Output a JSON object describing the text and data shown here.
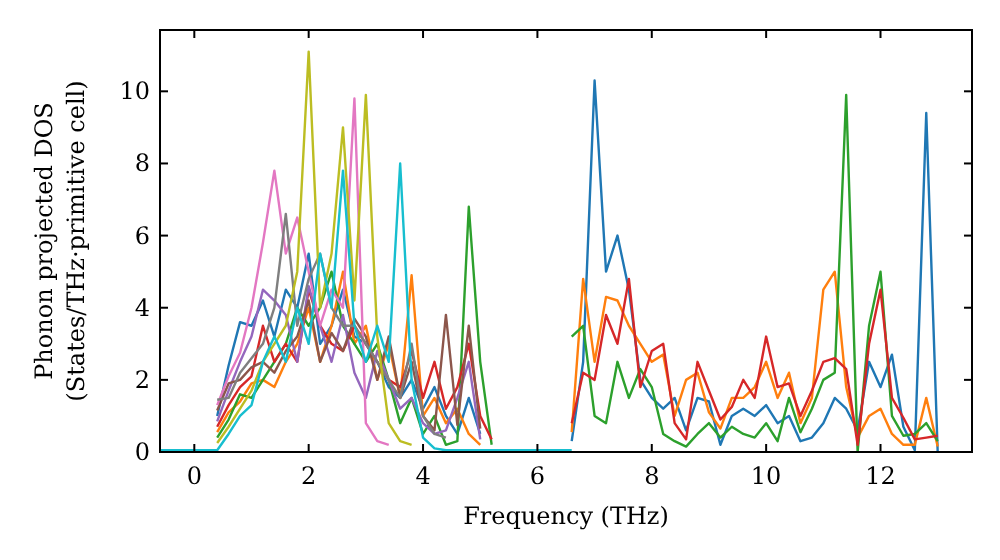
{
  "chart_data": {
    "type": "line",
    "xlabel": "Frequency (THz)",
    "ylabel": "Phonon projected DOS\n(States/THz·primitive cell)",
    "xlim": [
      -0.6,
      13.6
    ],
    "ylim": [
      0,
      11.7
    ],
    "xticks": [
      0,
      2,
      4,
      6,
      8,
      10,
      12
    ],
    "yticks": [
      0,
      2,
      4,
      6,
      8,
      10
    ],
    "grid": false,
    "marker": "none",
    "line_style": "solid",
    "x": [
      -0.6,
      0.2,
      0.4,
      0.6,
      0.8,
      1.0,
      1.2,
      1.4,
      1.6,
      1.8,
      2.0,
      2.2,
      2.4,
      2.6,
      2.8,
      3.0,
      3.2,
      3.4,
      3.6,
      3.8,
      4.0,
      4.2,
      4.4,
      4.6,
      4.8,
      5.0,
      5.2,
      6.4,
      6.6,
      6.8,
      7.0,
      7.2,
      7.4,
      7.6,
      7.8,
      8.0,
      8.2,
      8.4,
      8.6,
      8.8,
      9.0,
      9.2,
      9.4,
      9.6,
      9.8,
      10.0,
      10.2,
      10.4,
      10.6,
      10.8,
      11.0,
      11.2,
      11.4,
      11.6,
      11.8,
      12.0,
      12.2,
      12.4,
      12.6,
      12.8,
      13.0
    ],
    "series": [
      {
        "color": "#1f77b4",
        "values": [
          null,
          null,
          1.0,
          2.4,
          3.6,
          3.5,
          4.2,
          3.2,
          4.5,
          4.0,
          5.5,
          3.0,
          3.5,
          4.5,
          3.2,
          3.0,
          2.5,
          1.8,
          1.5,
          2.0,
          1.2,
          1.8,
          1.0,
          0.5,
          1.5,
          0.5,
          null,
          null,
          0.3,
          2.5,
          10.3,
          5.0,
          6.0,
          4.5,
          2.0,
          1.5,
          1.2,
          1.5,
          0.6,
          1.5,
          1.4,
          0.2,
          1.0,
          1.2,
          1.0,
          1.3,
          0.8,
          1.0,
          0.3,
          0.4,
          0.8,
          1.5,
          1.2,
          0.6,
          2.5,
          1.8,
          2.7,
          0.7,
          0.05,
          9.4,
          0
        ]
      },
      {
        "color": "#ff7f0e",
        "values": [
          null,
          null,
          0.55,
          1.1,
          1.4,
          1.9,
          2.0,
          1.8,
          2.5,
          3.0,
          4.0,
          2.5,
          3.5,
          5.0,
          3.0,
          3.5,
          2.0,
          3.0,
          1.5,
          4.9,
          1.0,
          1.5,
          0.8,
          1.2,
          0.5,
          0.2,
          null,
          null,
          0.55,
          4.8,
          2.5,
          4.3,
          4.2,
          3.5,
          3.0,
          2.5,
          2.7,
          1.0,
          2.0,
          2.2,
          1.1,
          0.65,
          1.5,
          1.5,
          1.8,
          2.5,
          1.5,
          2.2,
          0.8,
          1.5,
          4.5,
          5.0,
          1.8,
          0.4,
          1.0,
          1.2,
          0.5,
          0.2,
          0.2,
          1.5,
          0.15
        ]
      },
      {
        "color": "#2ca02c",
        "values": [
          null,
          null,
          0.4,
          0.9,
          1.6,
          1.5,
          2.0,
          2.5,
          3.0,
          4.0,
          3.5,
          4.0,
          5.0,
          3.5,
          3.0,
          2.5,
          3.0,
          2.0,
          0.8,
          1.5,
          0.5,
          1.0,
          0.2,
          0.3,
          6.8,
          2.5,
          0.2,
          null,
          3.2,
          3.5,
          1.0,
          0.8,
          2.5,
          1.5,
          2.3,
          1.8,
          0.5,
          0.3,
          0.15,
          0.5,
          0.8,
          0.4,
          0.7,
          0.5,
          0.4,
          0.8,
          0.3,
          1.5,
          0.55,
          1.2,
          2.0,
          2.2,
          9.9,
          0,
          3.5,
          5.0,
          1.0,
          0.45,
          0.5,
          0.8,
          0.3
        ]
      },
      {
        "color": "#d62728",
        "values": [
          null,
          null,
          0.7,
          1.3,
          1.8,
          2.1,
          3.5,
          2.5,
          3.0,
          2.5,
          4.5,
          3.5,
          3.0,
          2.8,
          3.5,
          3.0,
          2.5,
          2.0,
          1.8,
          2.8,
          1.5,
          2.5,
          1.2,
          1.8,
          3.0,
          1.0,
          0.35,
          null,
          0.8,
          2.2,
          2.0,
          3.8,
          3.0,
          4.8,
          1.8,
          2.8,
          3.0,
          0.8,
          0.35,
          2.5,
          1.7,
          0.9,
          1.25,
          2.0,
          1.5,
          3.2,
          1.8,
          1.9,
          1.0,
          1.7,
          2.5,
          2.6,
          2.3,
          0.2,
          3.0,
          4.5,
          1.5,
          0.95,
          0.35,
          0.4,
          0.45
        ]
      },
      {
        "color": "#9467bd",
        "values": [
          null,
          null,
          0.85,
          1.7,
          2.5,
          3.2,
          4.5,
          4.2,
          3.8,
          2.5,
          4.6,
          3.5,
          2.5,
          3.8,
          2.2,
          1.5,
          2.8,
          2.0,
          1.2,
          1.5,
          0.8,
          0.5,
          0.6,
          1.5,
          2.5,
          0.35,
          null,
          null,
          null,
          null,
          null,
          null,
          null,
          null,
          null,
          null,
          null,
          null,
          null,
          null,
          null,
          null,
          null,
          null,
          null,
          null,
          null,
          null,
          null,
          null,
          null,
          null,
          null,
          null,
          null,
          null,
          null,
          null,
          null,
          null,
          null
        ]
      },
      {
        "color": "#8c564b",
        "values": [
          null,
          null,
          1.15,
          1.9,
          2.0,
          2.35,
          2.5,
          2.2,
          2.8,
          3.2,
          4.2,
          2.5,
          3.3,
          2.8,
          3.7,
          3.2,
          2.0,
          3.2,
          1.5,
          2.5,
          1.0,
          0.6,
          3.8,
          0.75,
          3.5,
          0.65,
          null,
          null,
          null,
          null,
          null,
          null,
          null,
          null,
          null,
          null,
          null,
          null,
          null,
          null,
          null,
          null,
          null,
          null,
          null,
          null,
          null,
          null,
          null,
          null,
          null,
          null,
          null,
          null,
          null,
          null,
          null,
          null,
          null,
          null,
          null
        ]
      },
      {
        "color": "#e377c2",
        "values": [
          null,
          null,
          1.3,
          2.1,
          2.75,
          4.0,
          5.8,
          7.8,
          5.5,
          6.5,
          5.0,
          3.5,
          4.5,
          4.0,
          9.8,
          0.8,
          0.3,
          0.2,
          null,
          null,
          null,
          null,
          null,
          null,
          null,
          null,
          null,
          null,
          null,
          null,
          null,
          null,
          null,
          null,
          null,
          null,
          null,
          null,
          null,
          null,
          null,
          null,
          null,
          null,
          null,
          null,
          null,
          null,
          null,
          null,
          null,
          null,
          null,
          null,
          null,
          null,
          null,
          null,
          null,
          null,
          null
        ]
      },
      {
        "color": "#7f7f7f",
        "values": [
          null,
          null,
          1.45,
          1.5,
          2.2,
          2.6,
          3.0,
          4.0,
          6.6,
          3.5,
          4.8,
          5.5,
          4.0,
          3.5,
          3.5,
          3.0,
          2.5,
          2.0,
          1.5,
          3.0,
          1.0,
          0.5,
          0.4,
          null,
          null,
          null,
          null,
          null,
          null,
          null,
          null,
          null,
          null,
          null,
          null,
          null,
          null,
          null,
          null,
          null,
          null,
          null,
          null,
          null,
          null,
          null,
          null,
          null,
          null,
          null,
          null,
          null,
          null,
          null,
          null,
          null,
          null,
          null,
          null,
          null,
          null
        ]
      },
      {
        "color": "#bcbd22",
        "values": [
          null,
          null,
          0.25,
          0.7,
          1.2,
          1.7,
          2.5,
          3.0,
          3.5,
          5.0,
          11.1,
          4.0,
          5.5,
          9.0,
          4.2,
          9.9,
          3.2,
          0.8,
          0.3,
          0.2,
          null,
          null,
          null,
          null,
          null,
          null,
          null,
          null,
          null,
          null,
          null,
          null,
          null,
          null,
          null,
          null,
          null,
          null,
          null,
          null,
          null,
          null,
          null,
          null,
          null,
          null,
          null,
          null,
          null,
          null,
          null,
          null,
          null,
          null,
          null,
          null,
          null,
          null,
          null,
          null,
          null
        ]
      },
      {
        "color": "#17becf",
        "values": [
          0.05,
          0.05,
          0.05,
          0.5,
          1.0,
          1.3,
          2.5,
          3.2,
          2.5,
          4.0,
          3.0,
          5.5,
          4.0,
          7.8,
          3.5,
          2.5,
          3.5,
          2.5,
          8.0,
          2.0,
          0.4,
          0.1,
          0.05,
          0.05,
          0.05,
          0.05,
          0.05,
          0.05,
          0.05,
          null,
          null,
          null,
          null,
          null,
          null,
          null,
          null,
          null,
          null,
          null,
          null,
          null,
          null,
          null,
          null,
          null,
          null,
          null,
          null,
          null,
          null,
          null,
          null,
          null,
          null,
          null,
          null,
          null,
          null,
          null,
          null
        ]
      }
    ]
  }
}
